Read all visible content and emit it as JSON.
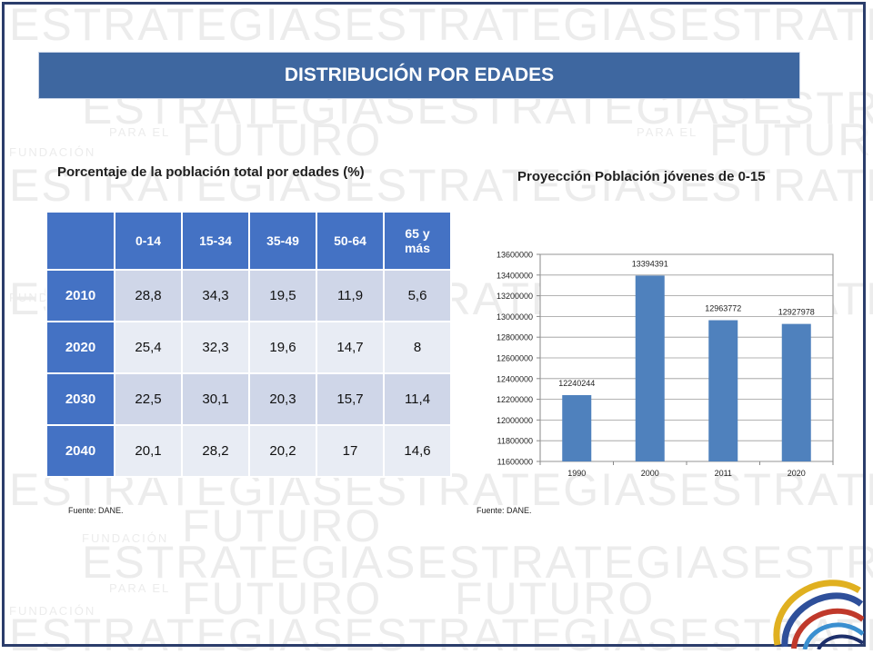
{
  "watermark": {
    "word1": "ESTRATEGIASESTRATEGIASESTRATEGIAS",
    "word2": "FUTURO",
    "word3": "PARA EL",
    "word4": "FUNDACIÓN"
  },
  "banner": {
    "title": "DISTRIBUCIÓN POR EDADES"
  },
  "table": {
    "title": "Porcentaje de la población total por edades (%)",
    "headers": [
      "0-14",
      "15-34",
      "35-49",
      "50-64",
      "65 y más"
    ],
    "rows": [
      {
        "year": "2010",
        "values": [
          "28,8",
          "34,3",
          "19,5",
          "11,9",
          "5,6"
        ]
      },
      {
        "year": "2020",
        "values": [
          "25,4",
          "32,3",
          "19,6",
          "14,7",
          "8"
        ]
      },
      {
        "year": "2030",
        "values": [
          "22,5",
          "30,1",
          "20,3",
          "15,7",
          "11,4"
        ]
      },
      {
        "year": "2040",
        "values": [
          "20,1",
          "28,2",
          "20,2",
          "17",
          "14,6"
        ]
      }
    ],
    "source": "Fuente: DANE."
  },
  "chart_title": "Proyección Población jóvenes de 0-15",
  "chart_source": "Fuente: DANE.",
  "chart_data": {
    "type": "bar",
    "categories": [
      "1990",
      "2000",
      "2011",
      "2020"
    ],
    "values": [
      12240244,
      13394391,
      12963772,
      12927978
    ],
    "labels": [
      "12240244",
      "13394391",
      "12963772",
      "12927978"
    ],
    "ylim": [
      11600000,
      13600000
    ],
    "yticks": [
      "11600000",
      "11800000",
      "12000000",
      "12200000",
      "12400000",
      "12600000",
      "12800000",
      "13000000",
      "13200000",
      "13400000",
      "13600000"
    ],
    "color": "#4f81bd",
    "grid": true
  }
}
